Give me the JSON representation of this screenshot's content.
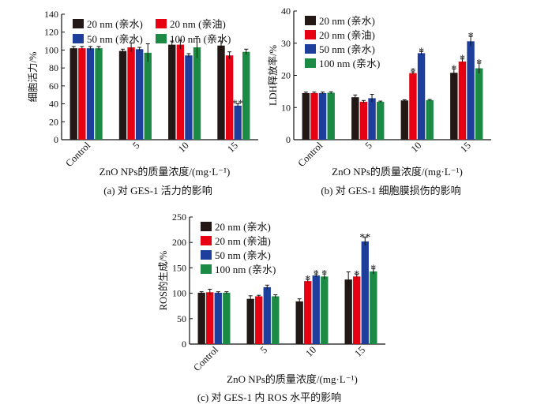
{
  "colors": {
    "20 nm (亲水)": "#231815",
    "20 nm (亲油)": "#e60012",
    "50 nm (亲水)": "#1d3f9b",
    "100 nm (亲水)": "#1a8a45"
  },
  "chart_data": [
    {
      "type": "bar",
      "caption": "(a) 对 GES-1 活力的影响",
      "xlabel": "ZnO NPs的质量浓度/(mg·L⁻¹)",
      "ylabel": "细胞活力/%",
      "ylim": [
        0,
        140
      ],
      "yticks": [
        0,
        20,
        40,
        60,
        80,
        100,
        120,
        140
      ],
      "categories": [
        "Control",
        "5",
        "10",
        "15"
      ],
      "legend_layout": "top, 2 columns",
      "series": [
        {
          "name": "20 nm (亲水)",
          "values": [
            102,
            99,
            106,
            105
          ],
          "errors": [
            2,
            2,
            4,
            5
          ],
          "stars": [
            "",
            "",
            "",
            ""
          ]
        },
        {
          "name": "20 nm (亲油)",
          "values": [
            102,
            103,
            106,
            94
          ],
          "errors": [
            2,
            5,
            5,
            4
          ],
          "stars": [
            "",
            "",
            "",
            ""
          ]
        },
        {
          "name": "50 nm (亲水)",
          "values": [
            102,
            101,
            94,
            38
          ],
          "errors": [
            2,
            2,
            2,
            2
          ],
          "stars": [
            "",
            "",
            "",
            "**"
          ]
        },
        {
          "name": "100 nm (亲水)",
          "values": [
            102,
            97,
            103,
            98
          ],
          "errors": [
            2,
            10,
            12,
            3
          ],
          "stars": [
            "",
            "",
            "",
            ""
          ]
        }
      ]
    },
    {
      "type": "bar",
      "caption": "(b) 对 GES-1 细胞膜损伤的影响",
      "xlabel": "ZnO NPs的质量浓度/(mg·L⁻¹)",
      "ylabel": "LDH释放率/%",
      "ylim": [
        0,
        40
      ],
      "yticks": [
        0,
        10,
        20,
        30,
        40
      ],
      "categories": [
        "Control",
        "5",
        "10",
        "15"
      ],
      "legend_layout": "top-left, 1 column",
      "series": [
        {
          "name": "20 nm (亲水)",
          "values": [
            14.5,
            13.2,
            12.2,
            20.8
          ],
          "errors": [
            0.3,
            0.7,
            0.2,
            1.2
          ],
          "stars": [
            "",
            "",
            "",
            "*"
          ]
        },
        {
          "name": "20 nm (亲油)",
          "values": [
            14.5,
            11.8,
            20.7,
            24.3
          ],
          "errors": [
            0.3,
            0.4,
            0.4,
            0.8
          ],
          "stars": [
            "",
            "",
            "*",
            "*"
          ]
        },
        {
          "name": "50 nm (亲水)",
          "values": [
            14.5,
            12.9,
            26.9,
            30.6
          ],
          "errors": [
            0.3,
            1.2,
            0.5,
            1.5
          ],
          "stars": [
            "",
            "",
            "*",
            "*"
          ]
        },
        {
          "name": "100 nm (亲水)",
          "values": [
            14.6,
            11.8,
            12.3,
            22.2
          ],
          "errors": [
            0.3,
            0.2,
            0.2,
            1.6
          ],
          "stars": [
            "",
            "",
            "",
            "*"
          ]
        }
      ]
    },
    {
      "type": "bar",
      "caption": "(c) 对 GES-1 内 ROS 水平的影响",
      "xlabel": "ZnO NPs的质量浓度/(mg·L⁻¹)",
      "ylabel": "ROS的生成/%",
      "ylim": [
        0,
        250
      ],
      "yticks": [
        0,
        50,
        100,
        150,
        200,
        250
      ],
      "categories": [
        "Control",
        "5",
        "10",
        "15"
      ],
      "legend_layout": "top-left, 1 column",
      "series": [
        {
          "name": "20 nm (亲水)",
          "values": [
            101,
            89,
            84,
            127
          ],
          "errors": [
            2,
            6,
            5,
            15
          ],
          "stars": [
            "",
            "",
            "",
            ""
          ]
        },
        {
          "name": "20 nm (亲油)",
          "values": [
            102,
            94,
            124,
            133
          ],
          "errors": [
            6,
            2,
            3,
            4
          ],
          "stars": [
            "",
            "",
            "*",
            "*"
          ]
        },
        {
          "name": "50 nm (亲水)",
          "values": [
            101,
            112,
            135,
            202
          ],
          "errors": [
            2,
            4,
            3,
            8
          ],
          "stars": [
            "",
            "",
            "*",
            "**"
          ]
        },
        {
          "name": "100 nm (亲水)",
          "values": [
            101,
            94,
            133,
            143
          ],
          "errors": [
            2,
            3,
            5,
            5
          ],
          "stars": [
            "",
            "",
            "*",
            "*"
          ]
        }
      ]
    }
  ]
}
